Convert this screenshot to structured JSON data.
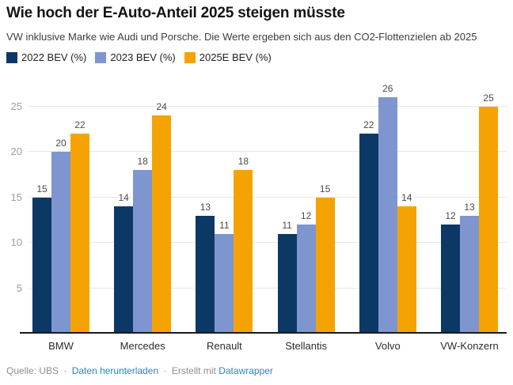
{
  "header": {
    "title": "Wie hoch der E-Auto-Anteil 2025 steigen müsste",
    "subtitle": "VW inklusive Marke wie Audi und Porsche. Die Werte ergeben sich aus den CO2-Flottenzielen ab 2025"
  },
  "chart_data": {
    "type": "bar",
    "title": "Wie hoch der E-Auto-Anteil 2025 steigen müsste",
    "categories": [
      "BMW",
      "Mercedes",
      "Renault",
      "Stellantis",
      "Volvo",
      "VW-Konzern"
    ],
    "series": [
      {
        "name": "2022 BEV (%)",
        "color": "#0c3866",
        "values": [
          15,
          14,
          13,
          11,
          22,
          12
        ]
      },
      {
        "name": "2023 BEV (%)",
        "color": "#7e95d0",
        "values": [
          20,
          18,
          11,
          12,
          26,
          13
        ]
      },
      {
        "name": "2025E BEV (%)",
        "color": "#f5a302",
        "values": [
          22,
          24,
          18,
          15,
          14,
          25
        ]
      }
    ],
    "xlabel": "",
    "ylabel": "",
    "ylim": [
      0,
      28
    ],
    "yticks": [
      5,
      10,
      15,
      20,
      25
    ],
    "grid": true,
    "legend_position": "top",
    "value_labels": true
  },
  "footer": {
    "source": "Quelle: UBS",
    "separator": "·",
    "download_link": "Daten herunterladen",
    "created_with": "Erstellt mit",
    "tool": "Datawrapper"
  },
  "colors": {
    "link": "#1f8ac0",
    "axis_tick_text": "#9e9e9e",
    "gridline": "#e8e8e8",
    "baseline": "#1a1a1a",
    "value_label": "#4a4a4a",
    "category_label": "#2b2b2b"
  }
}
